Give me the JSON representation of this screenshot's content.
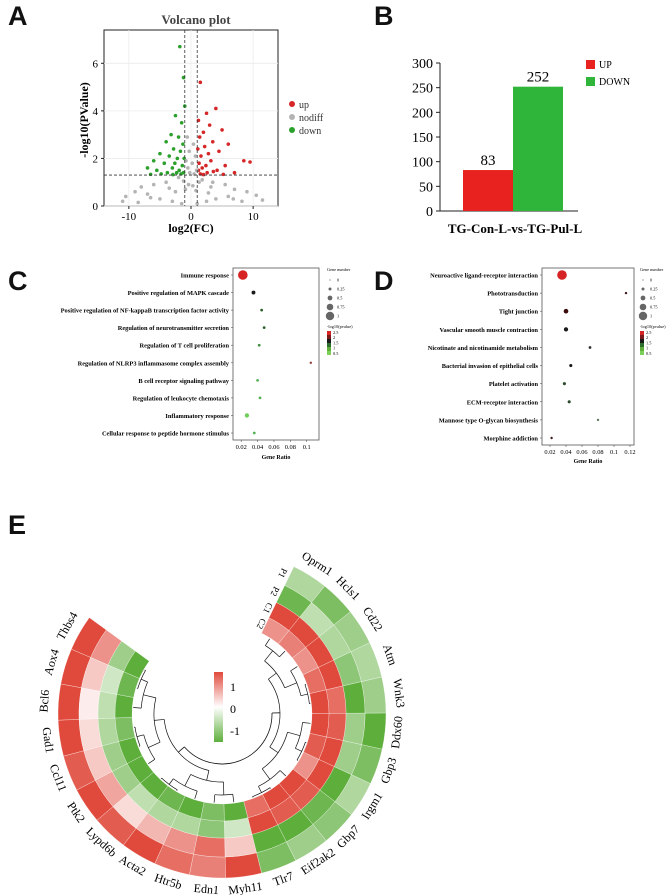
{
  "figure": {
    "panel_letters": [
      "A",
      "B",
      "C",
      "D",
      "E"
    ]
  },
  "chart_data": [
    {
      "id": "A",
      "type": "scatter",
      "title": "Volcano plot",
      "xlabel": "log2(FC)",
      "ylabel": "-log10(PValue)",
      "xlim": [
        -14,
        14
      ],
      "ylim": [
        0,
        7.4
      ],
      "xticks": [
        -10,
        0,
        10
      ],
      "yticks": [
        0,
        2,
        4,
        6
      ],
      "threshold_lines": {
        "log2fc": [
          -1,
          1
        ],
        "neglog10p": 1.3
      },
      "legend": {
        "placement": "right",
        "entries": [
          "up",
          "nodiff",
          "down"
        ]
      },
      "colors": {
        "up": "#d62728",
        "nodiff": "#b4b4b4",
        "down": "#2ca02c"
      },
      "series": [
        {
          "name": "down",
          "points": [
            [
              -1.8,
              6.7
            ],
            [
              -1.2,
              5.4
            ],
            [
              -1.0,
              4.2
            ],
            [
              -2.5,
              3.8
            ],
            [
              -1.5,
              3.5
            ],
            [
              -3.2,
              3.0
            ],
            [
              -2.0,
              2.9
            ],
            [
              -4.0,
              2.7
            ],
            [
              -1.3,
              2.6
            ],
            [
              -2.8,
              2.4
            ],
            [
              -1.7,
              2.3
            ],
            [
              -5.0,
              2.2
            ],
            [
              -3.5,
              2.1
            ],
            [
              -2.2,
              2.0
            ],
            [
              -1.1,
              2.0
            ],
            [
              -6.0,
              1.9
            ],
            [
              -4.3,
              1.8
            ],
            [
              -2.6,
              1.8
            ],
            [
              -1.4,
              1.7
            ],
            [
              -7.0,
              1.6
            ],
            [
              -3.0,
              1.6
            ],
            [
              -1.9,
              1.5
            ],
            [
              -5.5,
              1.5
            ],
            [
              -2.3,
              1.4
            ],
            [
              -1.2,
              1.4
            ],
            [
              -3.8,
              1.4
            ],
            [
              -4.8,
              1.35
            ],
            [
              -1.6,
              1.35
            ],
            [
              -2.9,
              1.32
            ],
            [
              -6.5,
              1.33
            ]
          ]
        },
        {
          "name": "up",
          "points": [
            [
              1.5,
              5.2
            ],
            [
              4.0,
              4.1
            ],
            [
              2.5,
              3.9
            ],
            [
              1.2,
              3.6
            ],
            [
              3.0,
              3.4
            ],
            [
              5.0,
              3.2
            ],
            [
              2.0,
              3.1
            ],
            [
              1.4,
              2.9
            ],
            [
              3.5,
              2.7
            ],
            [
              6.0,
              2.6
            ],
            [
              2.2,
              2.5
            ],
            [
              1.1,
              2.4
            ],
            [
              4.5,
              2.3
            ],
            [
              2.8,
              2.2
            ],
            [
              1.6,
              2.1
            ],
            [
              8.5,
              1.9
            ],
            [
              3.2,
              1.9
            ],
            [
              1.3,
              1.8
            ],
            [
              9.5,
              1.85
            ],
            [
              5.5,
              1.7
            ],
            [
              2.4,
              1.7
            ],
            [
              1.8,
              1.6
            ],
            [
              4.2,
              1.5
            ],
            [
              1.2,
              1.5
            ],
            [
              3.6,
              1.45
            ],
            [
              2.6,
              1.4
            ],
            [
              7.0,
              1.4
            ],
            [
              1.5,
              1.35
            ],
            [
              5.2,
              1.33
            ],
            [
              2.0,
              1.32
            ]
          ]
        },
        {
          "name": "nodiff",
          "points": [
            [
              -0.6,
              2.9
            ],
            [
              0.4,
              2.6
            ],
            [
              -0.3,
              2.3
            ],
            [
              0.7,
              2.1
            ],
            [
              -0.8,
              1.9
            ],
            [
              0.2,
              1.8
            ],
            [
              -0.5,
              1.6
            ],
            [
              0.9,
              1.5
            ],
            [
              -0.2,
              1.4
            ],
            [
              0.5,
              1.35
            ],
            [
              -2.0,
              1.2
            ],
            [
              1.8,
              1.1
            ],
            [
              -4.0,
              1.0
            ],
            [
              3.5,
              1.0
            ],
            [
              -6.0,
              0.9
            ],
            [
              5.5,
              0.9
            ],
            [
              -8.0,
              0.8
            ],
            [
              7.0,
              0.7
            ],
            [
              -9.0,
              0.6
            ],
            [
              9.0,
              0.6
            ],
            [
              -7.0,
              0.5
            ],
            [
              6.0,
              0.4
            ],
            [
              -5.0,
              0.3
            ],
            [
              4.0,
              0.3
            ],
            [
              -3.0,
              0.2
            ],
            [
              2.5,
              0.2
            ],
            [
              -1.5,
              0.1
            ],
            [
              1.0,
              0.1
            ],
            [
              -10.5,
              0.4
            ],
            [
              10.5,
              0.45
            ],
            [
              -11.0,
              0.2
            ],
            [
              11.5,
              0.25
            ],
            [
              -0.9,
              0.7
            ],
            [
              0.8,
              0.65
            ],
            [
              -2.5,
              0.6
            ],
            [
              2.8,
              0.55
            ],
            [
              -3.5,
              0.75
            ],
            [
              3.2,
              0.8
            ],
            [
              -1.2,
              1.05
            ],
            [
              1.3,
              1.0
            ],
            [
              -0.4,
              0.9
            ],
            [
              0.3,
              0.85
            ],
            [
              -6.5,
              0.35
            ],
            [
              6.8,
              0.3
            ],
            [
              -8.5,
              0.15
            ],
            [
              8.2,
              0.2
            ]
          ]
        }
      ]
    },
    {
      "id": "B",
      "type": "bar",
      "categories": [
        "UP",
        "DOWN"
      ],
      "values": [
        83,
        252
      ],
      "colors": [
        "#e8231f",
        "#2fb53a"
      ],
      "xlabel": "TG-Con-L-vs-TG-Pul-L",
      "ylim": [
        0,
        300
      ],
      "yticks": [
        0,
        50,
        100,
        150,
        200,
        250,
        300
      ],
      "legend": {
        "placement": "top-right",
        "entries": [
          "UP",
          "DOWN"
        ]
      }
    },
    {
      "id": "C",
      "type": "scatter",
      "subtype": "dot-plot",
      "xlabel": "Gene Ratio",
      "xlim": [
        0.01,
        0.115
      ],
      "xticks": [
        0.02,
        0.04,
        0.06,
        0.08,
        0.1
      ],
      "terms": [
        {
          "name": "Immune response",
          "ratio": 0.022,
          "size": 1.0,
          "color": "#d62323"
        },
        {
          "name": "Positive regulation of MAPK cascade",
          "ratio": 0.035,
          "size": 0.25,
          "color": "#1a1a1a"
        },
        {
          "name": "Positive regulation of NF-kappaB transcription factor activity",
          "ratio": 0.045,
          "size": 0.1,
          "color": "#2b5e2b"
        },
        {
          "name": "Regulation of neurotransmitter secretion",
          "ratio": 0.048,
          "size": 0.1,
          "color": "#2b5e2b"
        },
        {
          "name": "Regulation of T cell proliferation",
          "ratio": 0.042,
          "size": 0.1,
          "color": "#3f8f3f"
        },
        {
          "name": "Regulation of NLRP3 inflammasome complex assembly",
          "ratio": 0.105,
          "size": 0.05,
          "color": "#8b3a3a"
        },
        {
          "name": "B cell receptor signaling pathway",
          "ratio": 0.04,
          "size": 0.1,
          "color": "#55b055"
        },
        {
          "name": "Regulation of leukocyte chemotaxis",
          "ratio": 0.043,
          "size": 0.1,
          "color": "#55b055"
        },
        {
          "name": "Inflammatory response",
          "ratio": 0.027,
          "size": 0.3,
          "color": "#6fce5a"
        },
        {
          "name": "Cellular response to peptide hormone stimulus",
          "ratio": 0.036,
          "size": 0.1,
          "color": "#55b055"
        }
      ],
      "size_legend": {
        "title": "Gene number",
        "labels": [
          "0",
          "0.25",
          "0.5",
          "0.75",
          "1"
        ]
      },
      "color_legend": {
        "title": "-log10(pvalue)",
        "labels": [
          "2.5",
          "2",
          "1.5",
          "1",
          "0.5"
        ]
      }
    },
    {
      "id": "D",
      "type": "scatter",
      "subtype": "dot-plot",
      "xlabel": "Gene Ratio",
      "xlim": [
        0.01,
        0.125
      ],
      "xticks": [
        0.02,
        0.04,
        0.06,
        0.08,
        0.1,
        0.12
      ],
      "terms": [
        {
          "name": "Neuroactive ligand-receptor interaction",
          "ratio": 0.035,
          "size": 1.0,
          "color": "#d62323"
        },
        {
          "name": "Phototransduction",
          "ratio": 0.115,
          "size": 0.05,
          "color": "#3a1a1a"
        },
        {
          "name": "Tight junction",
          "ratio": 0.04,
          "size": 0.35,
          "color": "#3a0c0c"
        },
        {
          "name": "Vascular smooth muscle contraction",
          "ratio": 0.04,
          "size": 0.3,
          "color": "#1a1a1a"
        },
        {
          "name": "Nicotinate and nicotinamide metabolism",
          "ratio": 0.07,
          "size": 0.1,
          "color": "#2b2b2b"
        },
        {
          "name": "Bacterial invasion of epithelial cells",
          "ratio": 0.046,
          "size": 0.15,
          "color": "#1a1a1a"
        },
        {
          "name": "Platelet activation",
          "ratio": 0.038,
          "size": 0.15,
          "color": "#2b4a2b"
        },
        {
          "name": "ECM-receptor interaction",
          "ratio": 0.044,
          "size": 0.15,
          "color": "#2b4a2b"
        },
        {
          "name": "Mannose type O-glycan biosynthesis",
          "ratio": 0.08,
          "size": 0.05,
          "color": "#5a7a5a"
        },
        {
          "name": "Morphine addiction",
          "ratio": 0.022,
          "size": 0.05,
          "color": "#3a1a1a"
        }
      ],
      "size_legend": {
        "title": "Gene number",
        "labels": [
          "0",
          "0.25",
          "0.5",
          "0.75",
          "1"
        ]
      },
      "color_legend": {
        "title": "-log10(pvalue)",
        "labels": [
          "2.5",
          "2",
          "1.5",
          "1",
          "0.5"
        ]
      }
    },
    {
      "id": "E",
      "type": "heatmap",
      "subtype": "circular",
      "genes": [
        "Thbs4",
        "Aox4",
        "Bcl6",
        "Gad1",
        "Ccl11",
        "Ptk2",
        "Lypd6b",
        "Acta2",
        "Htr5b",
        "Edn1",
        "Myh11",
        "Tlr7",
        "Eif2ak2",
        "Gbp7",
        "Irgm1",
        "Gbp3",
        "Ddx60",
        "Wnk3",
        "Atm",
        "Cd22",
        "Hcls1",
        "Oprm1"
      ],
      "rings": [
        "P1",
        "P2",
        "C1",
        "C2"
      ],
      "values": [
        [
          1.0,
          0.6,
          -0.6,
          -1.0
        ],
        [
          1.0,
          0.3,
          -0.3,
          -0.9
        ],
        [
          1.0,
          0.1,
          -0.4,
          -1.0
        ],
        [
          1.0,
          0.2,
          -0.5,
          -0.8
        ],
        [
          0.9,
          0.3,
          -0.6,
          -1.0
        ],
        [
          1.0,
          0.5,
          -0.6,
          -1.0
        ],
        [
          0.9,
          0.2,
          -0.4,
          -1.0
        ],
        [
          1.0,
          0.4,
          -0.5,
          -0.9
        ],
        [
          0.8,
          0.6,
          -0.5,
          -1.0
        ],
        [
          0.7,
          0.8,
          -0.7,
          -0.8
        ],
        [
          1.0,
          0.3,
          -0.3,
          -1.0
        ],
        [
          -0.8,
          -1.0,
          1.0,
          0.8
        ],
        [
          -0.6,
          -1.0,
          0.9,
          1.0
        ],
        [
          -0.7,
          -0.9,
          0.9,
          1.0
        ],
        [
          -0.5,
          -1.0,
          1.0,
          0.6
        ],
        [
          -0.8,
          -0.6,
          1.0,
          0.9
        ],
        [
          -1.0,
          -0.6,
          0.9,
          1.0
        ],
        [
          -0.6,
          -1.0,
          0.8,
          1.0
        ],
        [
          -0.5,
          -0.7,
          1.0,
          0.8
        ],
        [
          -0.6,
          -0.5,
          1.0,
          0.6
        ],
        [
          -0.8,
          -0.4,
          1.0,
          0.7
        ],
        [
          -0.5,
          -0.9,
          1.0,
          0.6
        ]
      ],
      "colorbar": {
        "labels": [
          "1",
          "0",
          "-1"
        ],
        "range": [
          -1,
          1
        ]
      }
    }
  ]
}
